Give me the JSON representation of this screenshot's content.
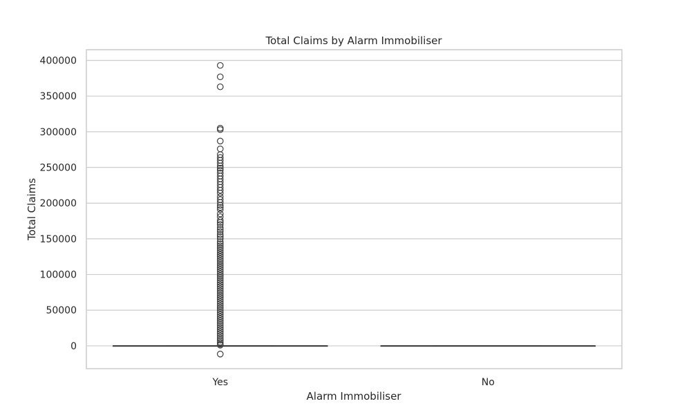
{
  "chart_data": {
    "type": "box",
    "title": "Total Claims by Alarm Immobiliser",
    "xlabel": "Alarm Immobiliser",
    "ylabel": "Total Claims",
    "ylim": [
      -32000,
      415000
    ],
    "yticks": [
      0,
      50000,
      100000,
      150000,
      200000,
      250000,
      300000,
      350000,
      400000
    ],
    "grid": true,
    "categories": [
      "Yes",
      "No"
    ],
    "boxes": [
      {
        "category": "Yes",
        "whisker_low": 0,
        "q1": 0,
        "median": 0,
        "q3": 0,
        "whisker_high": 0,
        "outliers": [
          -11500,
          1000,
          2500,
          5000,
          8000,
          11000,
          14000,
          17000,
          20000,
          23000,
          26000,
          29000,
          32000,
          35000,
          38000,
          41000,
          44000,
          47000,
          50000,
          53000,
          56000,
          59000,
          62000,
          65000,
          68000,
          71000,
          74000,
          77000,
          80000,
          83000,
          86000,
          89000,
          92000,
          95000,
          98000,
          101000,
          104000,
          107000,
          110000,
          113000,
          116000,
          119000,
          122000,
          125000,
          128000,
          131000,
          134000,
          137000,
          140000,
          143000,
          146000,
          150000,
          153000,
          156000,
          160000,
          163000,
          166000,
          170000,
          173000,
          176000,
          181000,
          185000,
          191000,
          194000,
          197000,
          201000,
          205000,
          209000,
          214000,
          218000,
          222000,
          226000,
          230000,
          234000,
          238000,
          242000,
          246000,
          249000,
          252000,
          256000,
          260000,
          264000,
          268000,
          276000,
          287000,
          303000,
          305000,
          363000,
          377000,
          393000
        ]
      },
      {
        "category": "No",
        "whisker_low": 0,
        "q1": 0,
        "median": 0,
        "q3": 0,
        "whisker_high": 0,
        "outliers": []
      }
    ]
  },
  "colors": {
    "grid": "#cccccc",
    "frame": "#cccccc",
    "box_line": "#3f3f3f",
    "outlier_edge": "#3f3f3f",
    "text": "#262626"
  }
}
